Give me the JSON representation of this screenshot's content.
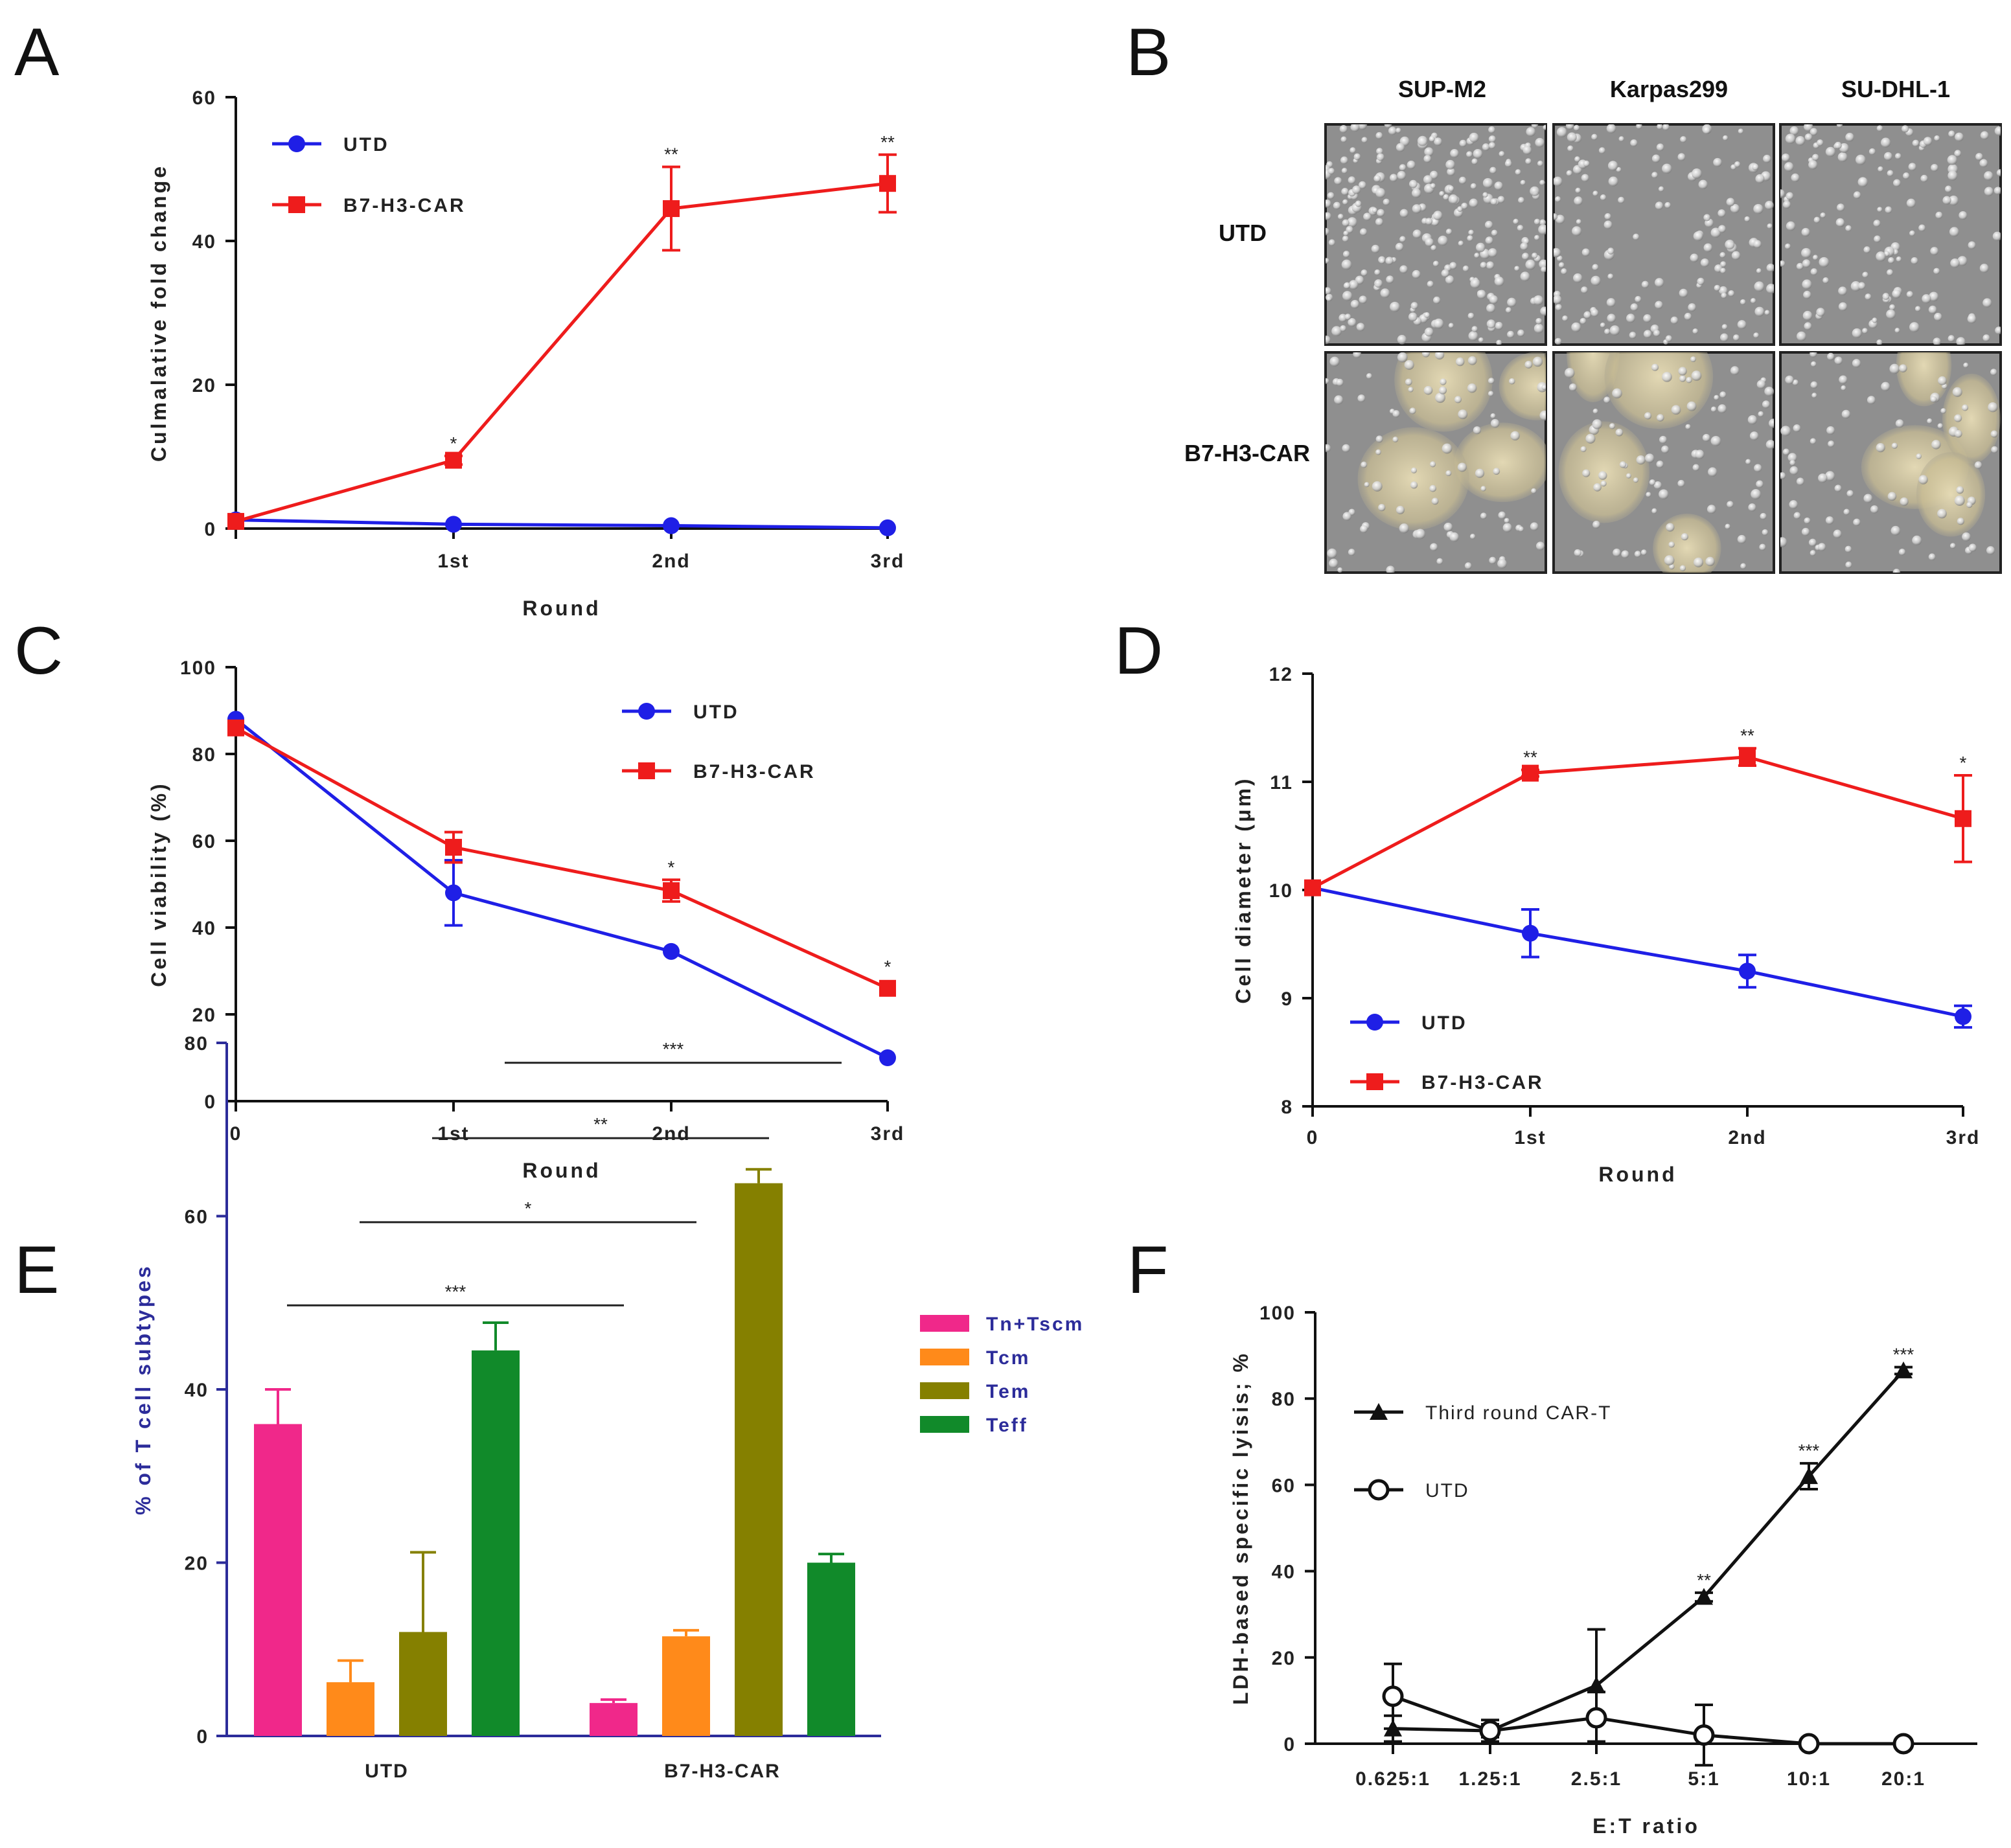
{
  "panels": {
    "A": "A",
    "B": "B",
    "C": "C",
    "D": "D",
    "E": "E",
    "F": "F"
  },
  "colors": {
    "utd": "#1f1fe6",
    "car": "#ee1c1c",
    "tn_tscm": "#f0288a",
    "tcm": "#ff8a1a",
    "tem": "#858000",
    "teff": "#118a2a",
    "axisE": "#2c2c9a",
    "black": "#111111"
  },
  "panel_b": {
    "columns": [
      "SUP-M2",
      "Karpas299",
      "SU-DHL-1"
    ],
    "rows": [
      "UTD",
      "B7-H3-CAR"
    ]
  },
  "chart_data": [
    {
      "id": "A",
      "type": "line",
      "title": "",
      "xlabel": "Round",
      "ylabel": "Culmalative fold change",
      "categories": [
        "",
        "1st",
        "2nd",
        "3rd"
      ],
      "ylim": [
        0,
        60
      ],
      "yticks": [
        0,
        20,
        40,
        60
      ],
      "legend_position": "top-left",
      "series": [
        {
          "name": "UTD",
          "marker": "circle",
          "color": "#1f1fe6",
          "values": [
            1.2,
            0.6,
            0.4,
            0.1
          ],
          "errors": [
            0,
            0,
            0,
            0
          ],
          "sig": [
            "",
            "",
            "",
            ""
          ]
        },
        {
          "name": "B7-H3-CAR",
          "marker": "square",
          "color": "#ee1c1c",
          "values": [
            1.0,
            9.5,
            44.5,
            48.0
          ],
          "errors": [
            0,
            0.6,
            5.8,
            4.0
          ],
          "sig": [
            "",
            "*",
            "**",
            "**"
          ]
        }
      ]
    },
    {
      "id": "C",
      "type": "line",
      "title": "",
      "xlabel": "Round",
      "ylabel": "Cell viability (%)",
      "categories": [
        "0",
        "1st",
        "2nd",
        "3rd"
      ],
      "ylim": [
        0,
        100
      ],
      "yticks": [
        0,
        20,
        40,
        60,
        80,
        100
      ],
      "legend_position": "top-right",
      "series": [
        {
          "name": "UTD",
          "marker": "circle",
          "color": "#1f1fe6",
          "values": [
            88,
            48,
            34.5,
            10
          ],
          "errors": [
            0,
            7.5,
            0,
            0
          ],
          "sig": [
            "",
            "",
            "",
            ""
          ]
        },
        {
          "name": "B7-H3-CAR",
          "marker": "square",
          "color": "#ee1c1c",
          "values": [
            86,
            58.5,
            48.5,
            26
          ],
          "errors": [
            0,
            3.5,
            2.5,
            0
          ],
          "sig": [
            "",
            "",
            "*",
            "*"
          ]
        }
      ]
    },
    {
      "id": "D",
      "type": "line",
      "title": "",
      "xlabel": "Round",
      "ylabel": "Cell diameter (μm)",
      "categories": [
        "0",
        "1st",
        "2nd",
        "3rd"
      ],
      "ylim": [
        8,
        12
      ],
      "yticks": [
        8,
        9,
        10,
        11,
        12
      ],
      "legend_position": "bottom-left",
      "series": [
        {
          "name": "UTD",
          "marker": "circle",
          "color": "#1f1fe6",
          "values": [
            10.02,
            9.6,
            9.25,
            8.83
          ],
          "errors": [
            0,
            0.22,
            0.15,
            0.1
          ],
          "sig": [
            "",
            "",
            "",
            ""
          ]
        },
        {
          "name": "B7-H3-CAR",
          "marker": "square",
          "color": "#ee1c1c",
          "values": [
            10.02,
            11.08,
            11.23,
            10.66
          ],
          "errors": [
            0,
            0.03,
            0.08,
            0.4
          ],
          "sig": [
            "",
            "**",
            "**",
            "*"
          ]
        }
      ]
    },
    {
      "id": "E",
      "type": "bar",
      "title": "",
      "xlabel": "",
      "ylabel": "% of T cell subtypes",
      "categories": [
        "UTD",
        "B7-H3-CAR"
      ],
      "ylim": [
        0,
        80
      ],
      "yticks": [
        0,
        20,
        40,
        60,
        80
      ],
      "legend_position": "top-right",
      "series": [
        {
          "name": "Tn+Tscm",
          "color": "#f0288a",
          "values": [
            36,
            3.8
          ],
          "errors": [
            4,
            0.4
          ]
        },
        {
          "name": "Tcm",
          "color": "#ff8a1a",
          "values": [
            6.2,
            11.5
          ],
          "errors": [
            2.5,
            0.7
          ]
        },
        {
          "name": "Tem",
          "color": "#858000",
          "values": [
            12,
            63.8
          ],
          "errors": [
            9.2,
            1.6
          ]
        },
        {
          "name": "Teff",
          "color": "#118a2a",
          "values": [
            44.5,
            20
          ],
          "errors": [
            3.2,
            1
          ]
        }
      ],
      "comparisons": [
        {
          "label": "***",
          "from": "UTD Tn+Tscm",
          "to": "B7-H3-CAR Tn+Tscm",
          "y": 49.7
        },
        {
          "label": "*",
          "from": "UTD Tcm",
          "to": "B7-H3-CAR Tcm",
          "y": 59.3
        },
        {
          "label": "**",
          "from": "UTD Tem",
          "to": "B7-H3-CAR Tem",
          "y": 69.0
        },
        {
          "label": "***",
          "from": "UTD Teff",
          "to": "B7-H3-CAR Teff",
          "y": 77.7
        }
      ]
    },
    {
      "id": "F",
      "type": "line",
      "title": "",
      "xlabel": "E:T ratio",
      "ylabel": "LDH-based specific lyisis; %",
      "categories": [
        "0.625:1",
        "1.25:1",
        "2.5:1",
        "5:1",
        "10:1",
        "20:1"
      ],
      "ylim": [
        0,
        100
      ],
      "yticks": [
        0,
        20,
        40,
        60,
        80,
        100
      ],
      "legend_position": "top-left",
      "series": [
        {
          "name": "Third round CAR-T",
          "marker": "triangle",
          "color": "#111111",
          "values": [
            3.5,
            3,
            13.5,
            34,
            62,
            86.5
          ],
          "errors": [
            3,
            2.5,
            13,
            1,
            3,
            0.8
          ],
          "sig": [
            "",
            "",
            "",
            "**",
            "***",
            "***"
          ]
        },
        {
          "name": "UTD",
          "marker": "open-circle",
          "color": "#111111",
          "values": [
            11,
            3,
            6,
            2,
            0,
            0
          ],
          "errors": [
            7.5,
            1.5,
            6,
            7,
            0,
            0
          ],
          "sig": [
            "",
            "",
            "",
            "",
            "",
            ""
          ]
        }
      ]
    }
  ]
}
